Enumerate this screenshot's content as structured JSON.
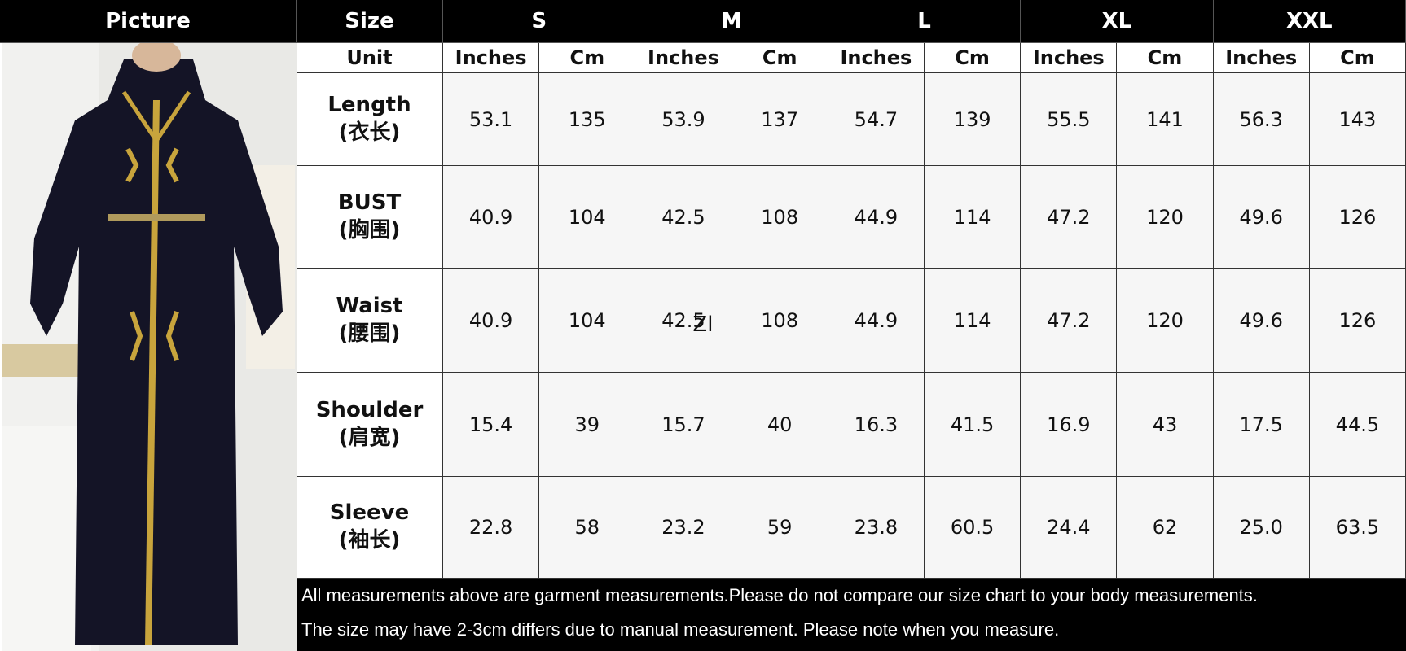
{
  "header": {
    "picture": "Picture",
    "size": "Size",
    "sizes": [
      "S",
      "M",
      "L",
      "XL",
      "XXL"
    ]
  },
  "unit_row": [
    "Unit",
    "Inches",
    "Cm",
    "Inches",
    "Cm",
    "Inches",
    "Cm",
    "Inches",
    "Cm",
    "Inches",
    "Cm"
  ],
  "rows": [
    {
      "name": "Length",
      "name_cn": "(衣长)",
      "values": [
        "53.1",
        "135",
        "53.9",
        "137",
        "54.7",
        "139",
        "55.5",
        "141",
        "56.3",
        "143"
      ]
    },
    {
      "name": "BUST",
      "name_cn": "(胸围)",
      "values": [
        "40.9",
        "104",
        "42.5",
        "108",
        "44.9",
        "114",
        "47.2",
        "120",
        "49.6",
        "126"
      ]
    },
    {
      "name": "Waist",
      "name_cn": "(腰围)",
      "values": [
        "40.9",
        "104",
        "42.5",
        "108",
        "44.9",
        "114",
        "47.2",
        "120",
        "49.6",
        "126"
      ]
    },
    {
      "name": "Shoulder",
      "name_cn": "(肩宽)",
      "values": [
        "15.4",
        "39",
        "15.7",
        "40",
        "16.3",
        "41.5",
        "16.9",
        "43",
        "17.5",
        "44.5"
      ]
    },
    {
      "name": "Sleeve",
      "name_cn": "(袖长)",
      "values": [
        "22.8",
        "58",
        "23.2",
        "59",
        "23.8",
        "60.5",
        "24.4",
        "62",
        "25.0",
        "63.5"
      ]
    }
  ],
  "stray_mark": "Zl",
  "footer": [
    "All measurements above are garment measurements.Please do not compare our size chart to your body measurements.",
    "The size may have 2-3cm differs due to manual measurement. Please note when you measure."
  ]
}
